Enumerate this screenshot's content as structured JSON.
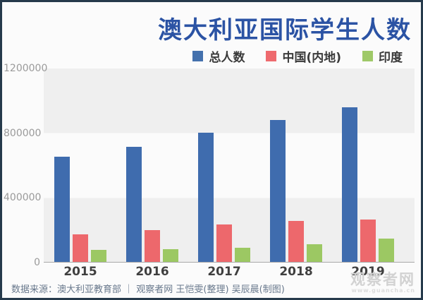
{
  "title": "澳大利亚国际学生人数",
  "legend": [
    {
      "key": "total",
      "label": "总人数",
      "color": "#4471ad"
    },
    {
      "key": "china",
      "label": "中国(内地)",
      "color": "#ee6a6e"
    },
    {
      "key": "india",
      "label": "印度",
      "color": "#9fc968"
    }
  ],
  "chart_data": {
    "type": "bar",
    "title": "澳大利亚国际学生人数",
    "categories": [
      "2015",
      "2016",
      "2017",
      "2018",
      "2019"
    ],
    "series": [
      {
        "key": "total",
        "name": "总人数",
        "color": "#3f6cae",
        "values": [
          650000,
          712000,
          799000,
          876000,
          956000
        ]
      },
      {
        "key": "china",
        "name": "中国(内地)",
        "color": "#ed686c",
        "values": [
          170000,
          197000,
          231000,
          255000,
          261000
        ]
      },
      {
        "key": "india",
        "name": "印度",
        "color": "#9cc863",
        "values": [
          73000,
          79000,
          88000,
          108000,
          145000
        ]
      }
    ],
    "xlabel": "",
    "ylabel": "",
    "ylim": [
      0,
      1200000
    ],
    "yticks": [
      0,
      400000,
      800000,
      1200000
    ],
    "grid": "banded-horizontal",
    "legend_position": "top-right"
  },
  "footer": {
    "text": "数据来源：澳大利亚教育部 ｜ 观察者网 王恺雯(整理) 吴辰晨(制图)"
  },
  "watermark": {
    "name": "观察者网",
    "url": "www.guancha.cn"
  },
  "colors": {
    "title": "#2b53a4",
    "frame_border": "#263a4b",
    "band_gray": "#efefef",
    "background": "#fbfbfb",
    "axis_text": "#9a9a9a",
    "footer_text": "#68788c"
  }
}
